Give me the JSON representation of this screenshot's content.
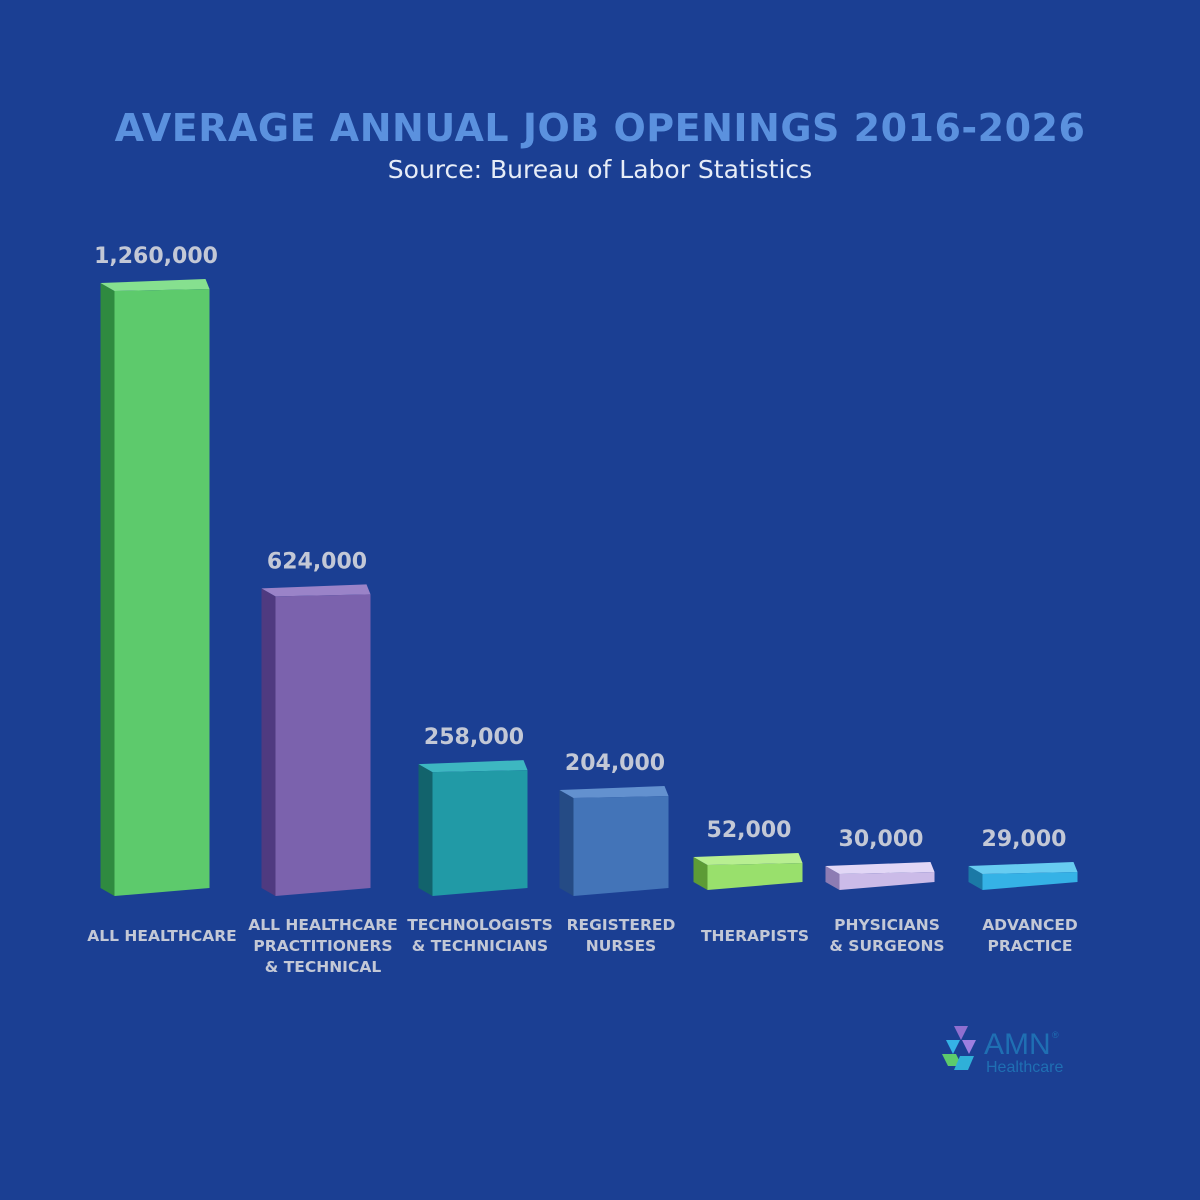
{
  "title": "AVERAGE ANNUAL JOB OPENINGS 2016-2026",
  "subtitle": "Source: Bureau of Labor Statistics",
  "colors": {
    "background": "#1b3f93",
    "title": "#5b91de",
    "value_label": "#c3c8d6",
    "category_label": "#c3c8d6"
  },
  "chart_data": {
    "type": "bar",
    "title": "AVERAGE ANNUAL JOB OPENINGS 2016-2026",
    "subtitle": "Source: Bureau of Labor Statistics",
    "categories": [
      [
        "ALL HEALTHCARE"
      ],
      [
        "ALL HEALTHCARE",
        "PRACTITIONERS",
        "& TECHNICAL"
      ],
      [
        "TECHNOLOGISTS",
        "& TECHNICIANS"
      ],
      [
        "REGISTERED",
        "NURSES"
      ],
      [
        "THERAPISTS"
      ],
      [
        "PHYSICIANS",
        "& SURGEONS"
      ],
      [
        "ADVANCED",
        "PRACTICE"
      ]
    ],
    "values": [
      1260000,
      624000,
      258000,
      204000,
      52000,
      30000,
      29000
    ],
    "value_labels": [
      "1,260,000",
      "624,000",
      "258,000",
      "204,000",
      "52,000",
      "30,000",
      "29,000"
    ],
    "bar_colors": [
      {
        "front": "#5dca6c",
        "side": "#2f8a40",
        "top": "#86e08f"
      },
      {
        "front": "#7b62ad",
        "side": "#4f3a80",
        "top": "#9a83c8"
      },
      {
        "front": "#219aa6",
        "side": "#12636c",
        "top": "#3db7c1"
      },
      {
        "front": "#4374b8",
        "side": "#254b85",
        "top": "#6391cf"
      },
      {
        "front": "#99e06c",
        "side": "#5d9b36",
        "top": "#b8ef91"
      },
      {
        "front": "#cbbbe8",
        "side": "#8d7cb3",
        "top": "#e2d7f6"
      },
      {
        "front": "#35b2e6",
        "side": "#1b79a6",
        "top": "#67ccf1"
      }
    ],
    "ylim": [
      0,
      1260000
    ],
    "grid": false,
    "legend": "none"
  },
  "logo": {
    "name": "AMN",
    "sub": "Healthcare",
    "mark": "®"
  }
}
